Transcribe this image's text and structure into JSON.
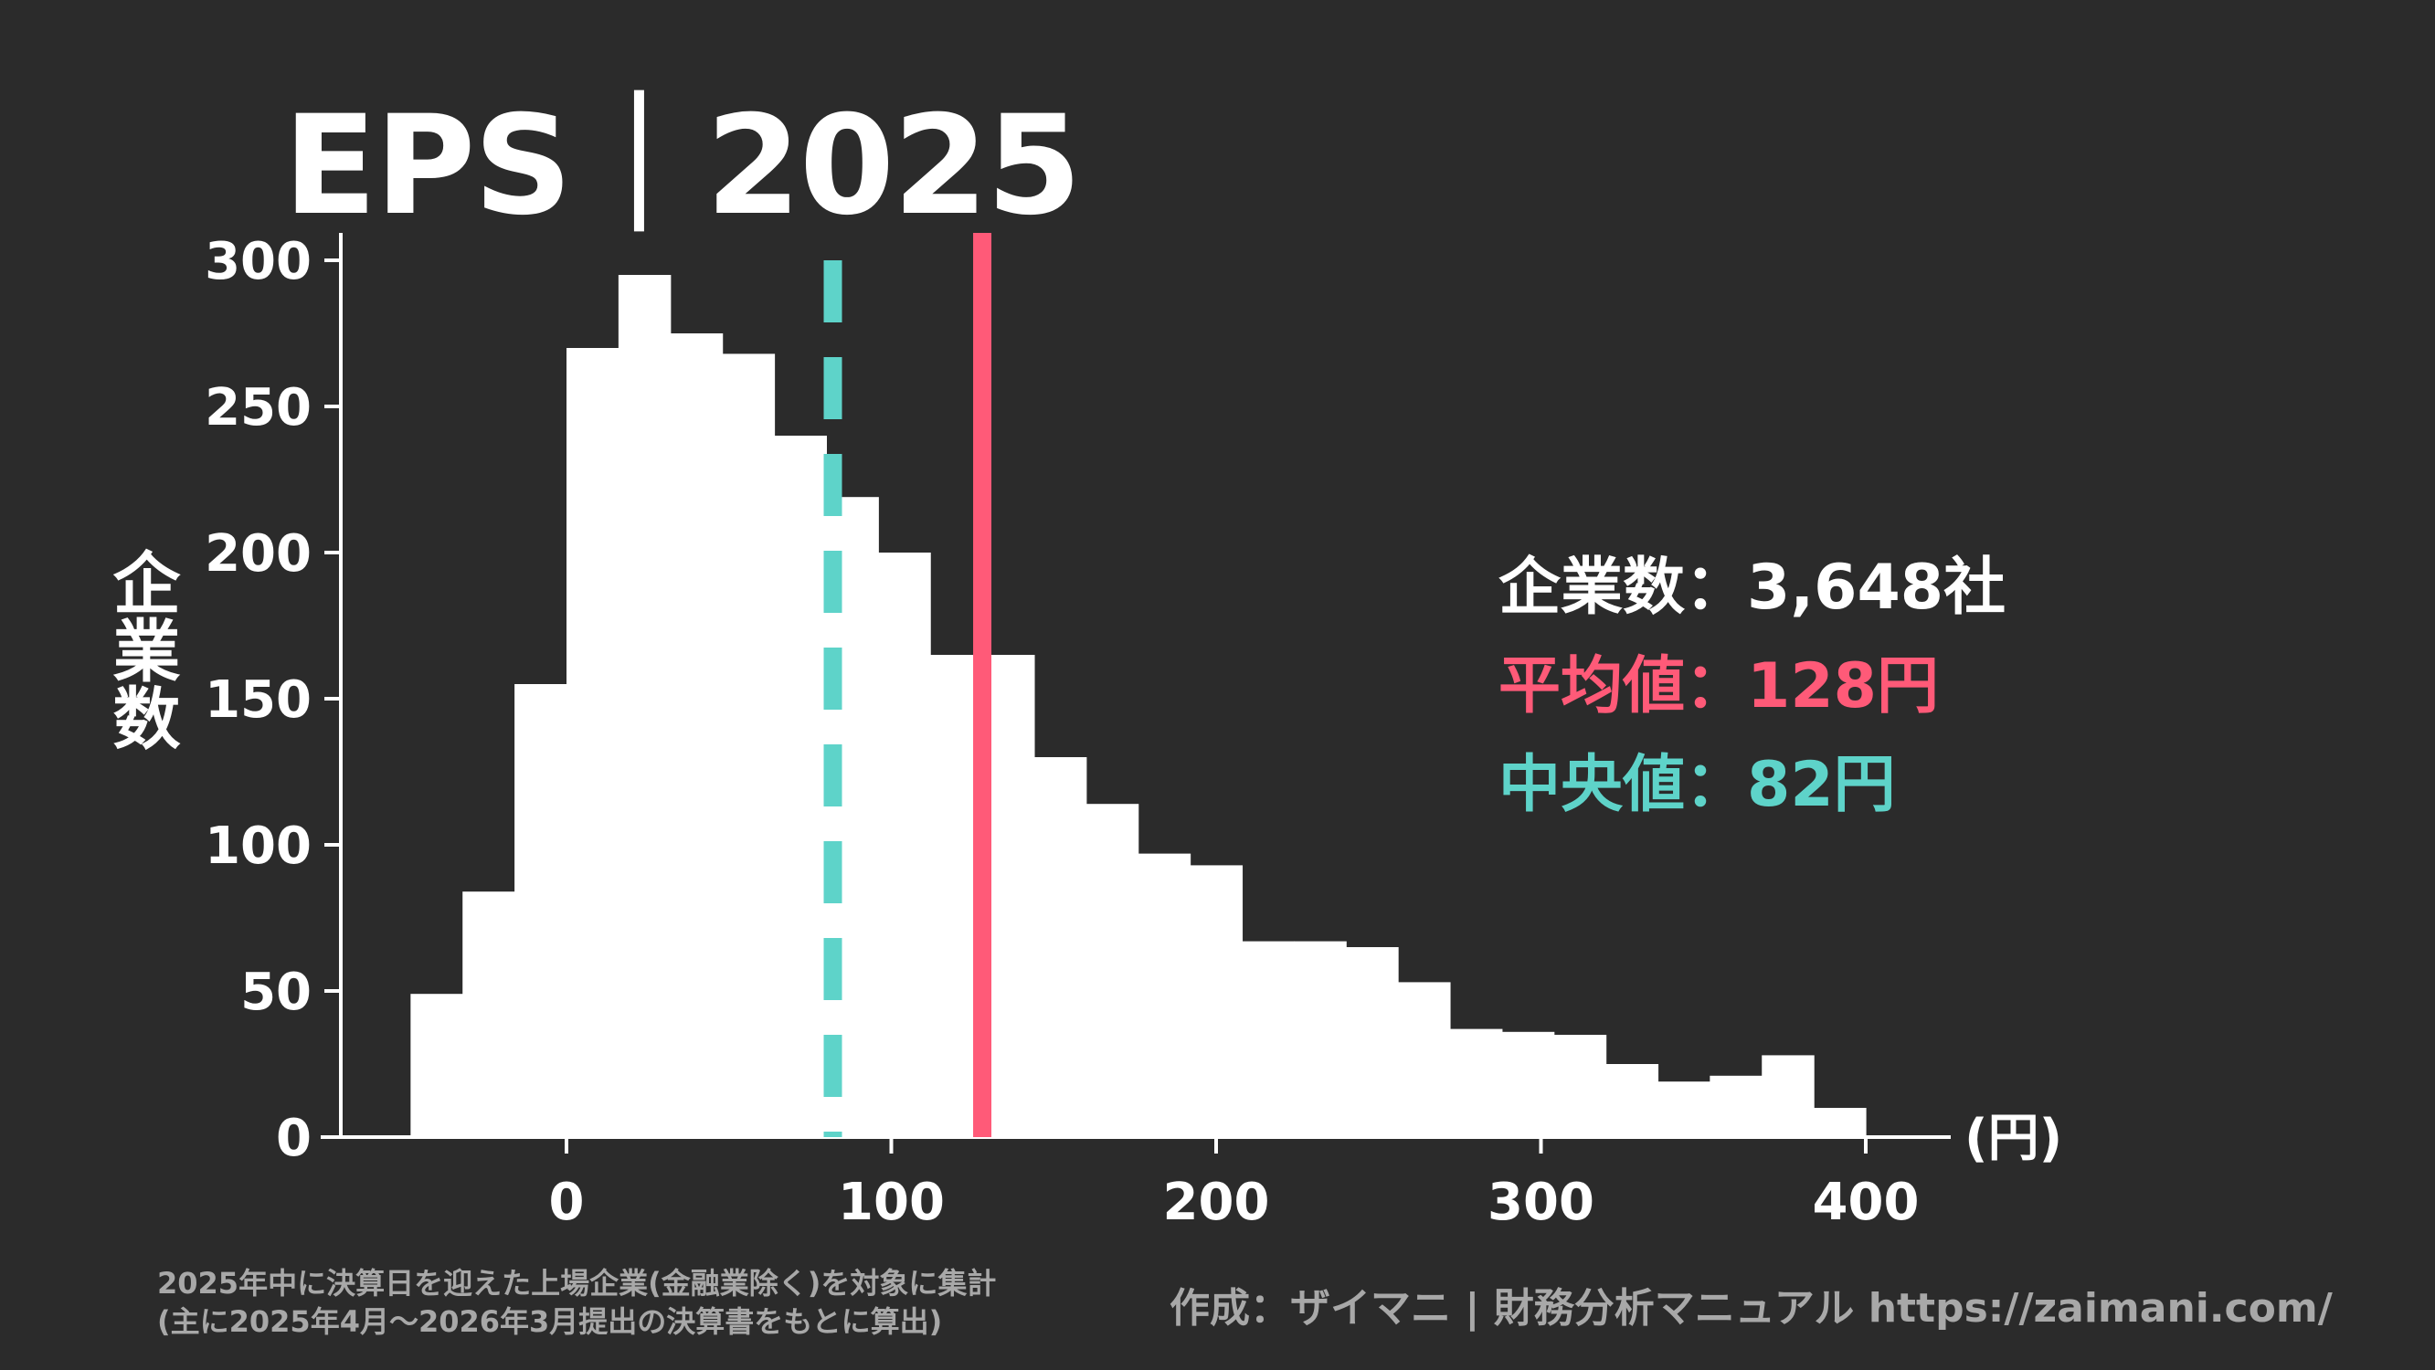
{
  "title": "EPS｜2025",
  "stats": {
    "count": "企業数：3,648社",
    "mean": "平均値：128円",
    "median": "中央値：82円"
  },
  "note": {
    "line1": "2025年中に決算日を迎えた上場企業(金融業除く)を対象に集計",
    "line2": "(主に2025年4月～2026年3月提出の決算書をもとに算出)"
  },
  "credit": "作成：ザイマニ | 財務分析マニュアル https://zaimani.com/",
  "colors": {
    "background": "#2b2b2b",
    "bars": "#ffffff",
    "axis": "#ffffff",
    "mean": "#ff5a78",
    "median": "#5ed3c9",
    "footnote": "#a8a8a8"
  },
  "chart_data": {
    "type": "bar",
    "histogram": true,
    "xlabel": "(円)",
    "ylabel": "企業数",
    "xlim": [
      -75,
      425
    ],
    "ylim": [
      0,
      310
    ],
    "xticks": [
      0,
      100,
      200,
      300,
      400
    ],
    "yticks": [
      0,
      50,
      100,
      150,
      200,
      250,
      300
    ],
    "bin_edges": [
      -48,
      -32,
      -16,
      0,
      16,
      32,
      48,
      64,
      80,
      96,
      112,
      128,
      144,
      160,
      176,
      192,
      208,
      224,
      240,
      256,
      272,
      288,
      304,
      320,
      336,
      352,
      368,
      384,
      400
    ],
    "values": [
      49,
      84,
      155,
      270,
      295,
      275,
      268,
      240,
      219,
      200,
      165,
      165,
      130,
      114,
      97,
      93,
      67,
      67,
      65,
      53,
      37,
      36,
      35,
      25,
      19,
      21,
      28,
      10
    ],
    "mean": 128,
    "median": 82,
    "grid": false,
    "legend": "none"
  }
}
